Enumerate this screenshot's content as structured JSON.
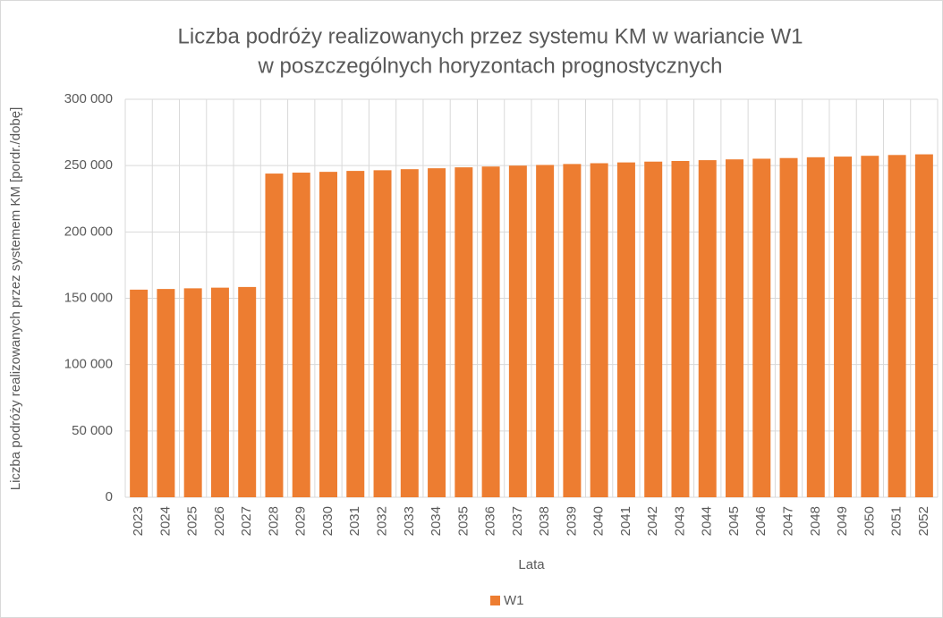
{
  "chart_data": {
    "type": "bar",
    "title": [
      "Liczba podróży realizowanych przez systemu KM w wariancie W1",
      "w poszczególnych horyzontach prognostycznych"
    ],
    "y_label": "Liczba podróży realizowanych przez systemem KM [pordr./dobę]",
    "x_label": "Lata",
    "categories": [
      "2023",
      "2024",
      "2025",
      "2026",
      "2027",
      "2028",
      "2029",
      "2030",
      "2031",
      "2032",
      "2033",
      "2034",
      "2035",
      "2036",
      "2037",
      "2038",
      "2039",
      "2040",
      "2041",
      "2042",
      "2043",
      "2044",
      "2045",
      "2046",
      "2047",
      "2048",
      "2049",
      "2050",
      "2051",
      "2052"
    ],
    "series": [
      {
        "name": "W1",
        "color": "#ed7d31",
        "values": [
          156500,
          157000,
          157500,
          158000,
          158500,
          244000,
          244700,
          245300,
          246000,
          246500,
          247300,
          248000,
          248700,
          249300,
          250000,
          250500,
          251200,
          251800,
          252400,
          253000,
          253500,
          254100,
          254700,
          255200,
          255700,
          256300,
          256800,
          257400,
          258000,
          258500
        ]
      }
    ],
    "ylim": [
      0,
      300000
    ],
    "yticks": [
      0,
      {
        "value": 50000,
        "label": "50 000"
      },
      {
        "value": 100000,
        "label": "100 000"
      },
      {
        "value": 150000,
        "label": "150 000"
      },
      {
        "value": 200000,
        "label": "200 000"
      },
      {
        "value": 250000,
        "label": "250 000"
      },
      {
        "value": 300000,
        "label": "300 000"
      }
    ],
    "grid": true,
    "legend": "bottom"
  }
}
